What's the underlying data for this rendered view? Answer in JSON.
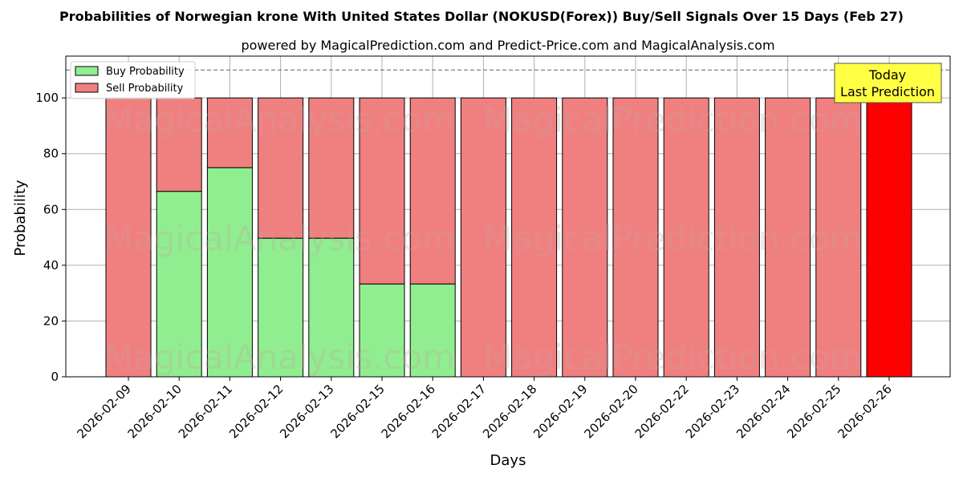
{
  "chart_data": {
    "type": "bar",
    "stacked": true,
    "title": "Probabilities of Norwegian krone With United States Dollar (NOKUSD(Forex)) Buy/Sell Signals Over 15 Days (Feb 27)",
    "subtitle": "powered by MagicalPrediction.com and Predict-Price.com and MagicalAnalysis.com",
    "xlabel": "Days",
    "ylabel": "Probability",
    "ylim": [
      0,
      115
    ],
    "yticks": [
      0,
      20,
      40,
      60,
      80,
      100
    ],
    "reference_line": 110,
    "grid": true,
    "legend_position": "top-left",
    "categories": [
      "2026-02-09",
      "2026-02-10",
      "2026-02-11",
      "2026-02-12",
      "2026-02-13",
      "2026-02-15",
      "2026-02-16",
      "2026-02-17",
      "2026-02-18",
      "2026-02-19",
      "2026-02-20",
      "2026-02-22",
      "2026-02-23",
      "2026-02-24",
      "2026-02-25",
      "2026-02-26"
    ],
    "series": [
      {
        "name": "Buy Probability",
        "color": "#90ee90",
        "values": [
          0,
          66.5,
          75,
          49.7,
          49.7,
          33.3,
          33.3,
          0,
          0,
          0,
          0,
          0,
          0,
          0,
          0,
          0
        ]
      },
      {
        "name": "Sell Probability",
        "color": "#f08080",
        "values": [
          100,
          33.5,
          25,
          50.3,
          50.3,
          66.7,
          66.7,
          100,
          100,
          100,
          100,
          100,
          100,
          100,
          100,
          100
        ]
      }
    ],
    "highlight": {
      "category": "2026-02-26",
      "color": "#ff0000"
    },
    "annotation": {
      "line1": "Today",
      "line2": "Last Prediction",
      "background": "#ffff44"
    },
    "watermarks": [
      "MagicalAnalysis.com",
      "MagicalPrediction.com"
    ]
  }
}
